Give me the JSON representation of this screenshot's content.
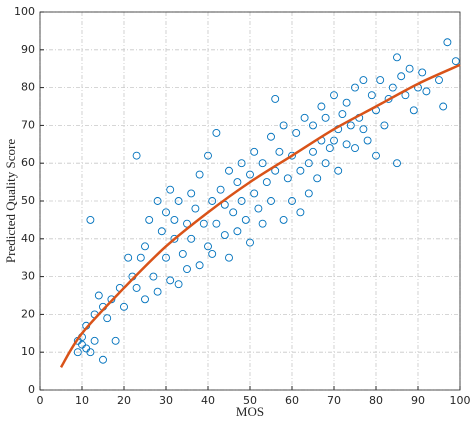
{
  "chart_data": {
    "type": "scatter",
    "xlabel": "MOS",
    "ylabel": "Predicted Quality Score",
    "xlim": [
      0,
      100
    ],
    "ylim": [
      0,
      100
    ],
    "xticks": [
      0,
      10,
      20,
      30,
      40,
      50,
      60,
      70,
      80,
      90,
      100
    ],
    "yticks": [
      0,
      10,
      20,
      30,
      40,
      50,
      60,
      70,
      80,
      90,
      100
    ],
    "grid": true,
    "series": [
      {
        "mode": "markers",
        "color": "#0072bd",
        "x": [
          9,
          9,
          10,
          10,
          11,
          11,
          12,
          12,
          13,
          13,
          14,
          15,
          15,
          16,
          17,
          18,
          19,
          20,
          21,
          22,
          23,
          23,
          24,
          25,
          25,
          26,
          27,
          28,
          28,
          29,
          30,
          30,
          31,
          31,
          32,
          32,
          33,
          33,
          34,
          35,
          35,
          36,
          36,
          37,
          38,
          38,
          39,
          40,
          40,
          41,
          41,
          42,
          42,
          43,
          44,
          44,
          45,
          45,
          46,
          47,
          47,
          48,
          48,
          49,
          50,
          50,
          51,
          51,
          52,
          53,
          53,
          54,
          55,
          55,
          56,
          56,
          57,
          58,
          58,
          59,
          60,
          60,
          61,
          62,
          62,
          63,
          64,
          64,
          65,
          65,
          66,
          67,
          67,
          68,
          68,
          69,
          70,
          70,
          71,
          71,
          72,
          73,
          73,
          74,
          75,
          75,
          76,
          77,
          77,
          78,
          79,
          80,
          80,
          81,
          82,
          83,
          84,
          85,
          85,
          86,
          87,
          88,
          89,
          90,
          91,
          92,
          95,
          96,
          97,
          99
        ],
        "values": [
          10,
          13,
          12,
          14,
          11,
          17,
          10,
          45,
          20,
          13,
          25,
          22,
          8,
          19,
          24,
          13,
          27,
          22,
          35,
          30,
          62,
          27,
          35,
          38,
          24,
          45,
          30,
          50,
          26,
          42,
          47,
          35,
          53,
          29,
          40,
          45,
          28,
          50,
          36,
          44,
          32,
          52,
          40,
          48,
          33,
          57,
          44,
          38,
          62,
          50,
          36,
          68,
          44,
          53,
          41,
          49,
          58,
          35,
          47,
          55,
          42,
          60,
          50,
          45,
          57,
          39,
          63,
          52,
          48,
          60,
          44,
          55,
          67,
          50,
          77,
          58,
          63,
          45,
          70,
          56,
          62,
          50,
          68,
          58,
          47,
          72,
          60,
          52,
          70,
          63,
          56,
          75,
          66,
          60,
          72,
          64,
          78,
          66,
          69,
          58,
          73,
          65,
          76,
          70,
          80,
          64,
          72,
          82,
          69,
          66,
          78,
          74,
          62,
          82,
          70,
          77,
          80,
          88,
          60,
          83,
          78,
          85,
          74,
          80,
          84,
          79,
          82,
          75,
          92,
          87
        ]
      },
      {
        "mode": "line",
        "color": "#d95319",
        "x": [
          5,
          10,
          20,
          30,
          40,
          50,
          60,
          70,
          80,
          90,
          100
        ],
        "values": [
          6,
          15,
          27,
          38,
          47,
          55,
          62,
          69,
          75,
          81,
          86
        ]
      }
    ]
  }
}
